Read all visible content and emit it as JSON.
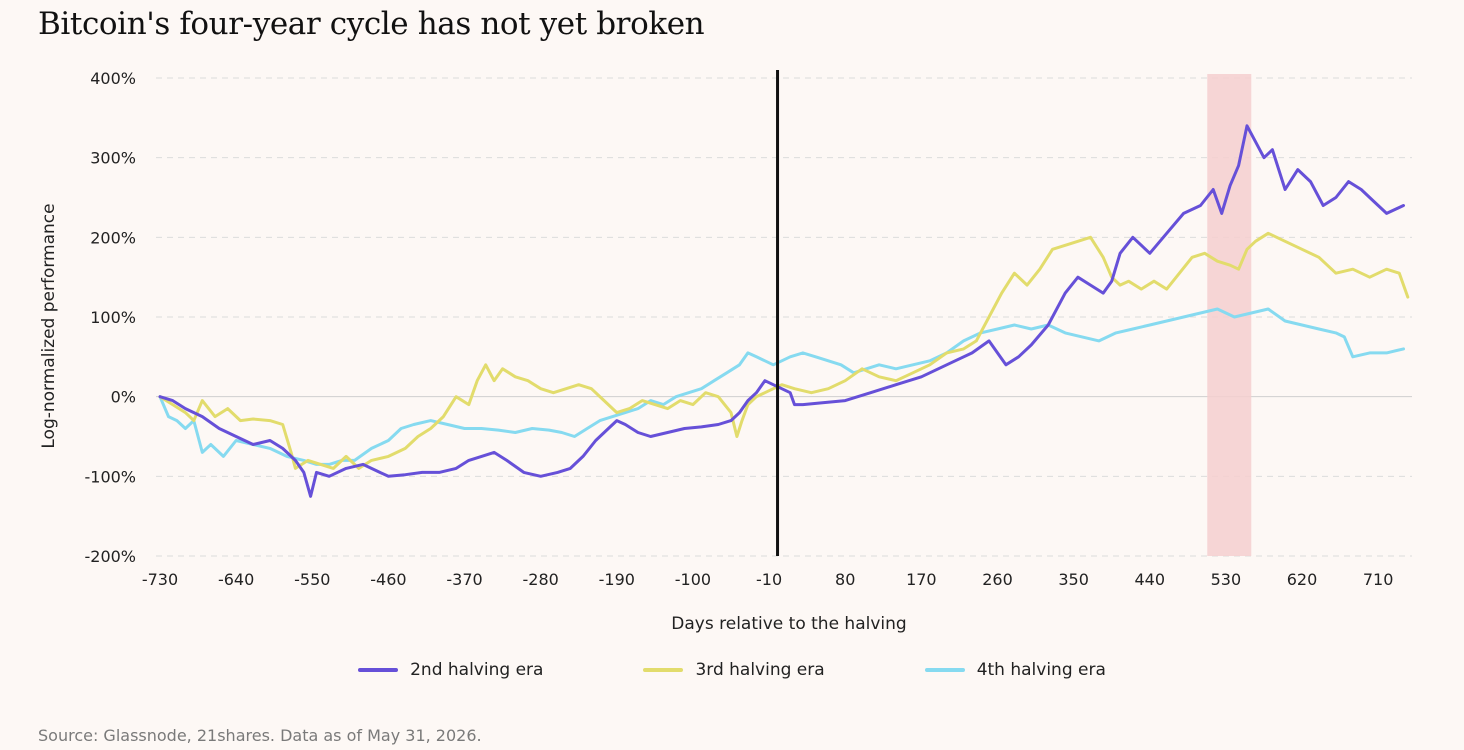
{
  "chart_data": {
    "type": "line",
    "title": "Bitcoin's four-year cycle has not yet broken",
    "xlabel": "Days relative to the halving",
    "ylabel": "Log-normalized performance",
    "xlim": [
      -730,
      750
    ],
    "ylim": [
      -200,
      400
    ],
    "xticks": [
      -730,
      -640,
      -550,
      -460,
      -370,
      -280,
      -190,
      -100,
      -10,
      80,
      170,
      260,
      350,
      440,
      530,
      620,
      710
    ],
    "xtick_labels": [
      "-730",
      "-640",
      "-550",
      "-460",
      "-370",
      "-280",
      "-190",
      "-100",
      "-10",
      "80",
      "170",
      "260",
      "350",
      "440",
      "530",
      "620",
      "710"
    ],
    "yticks": [
      -200,
      -100,
      0,
      100,
      200,
      300,
      400
    ],
    "ytick_labels": [
      "-200%",
      "-100%",
      "0%",
      "100%",
      "200%",
      "300%",
      "400%"
    ],
    "grid": "horizontal-dashed",
    "legend_position": "bottom-center",
    "halving_marker_x": 0,
    "highlight_band": [
      508,
      560
    ],
    "series": [
      {
        "name": "2nd halving era",
        "color": "#6650d8",
        "x": [
          -730,
          -715,
          -700,
          -680,
          -660,
          -640,
          -620,
          -600,
          -585,
          -570,
          -560,
          -552,
          -545,
          -530,
          -510,
          -490,
          -470,
          -460,
          -440,
          -420,
          -400,
          -380,
          -365,
          -350,
          -335,
          -320,
          -300,
          -280,
          -260,
          -245,
          -230,
          -215,
          -200,
          -190,
          -180,
          -165,
          -150,
          -130,
          -110,
          -90,
          -70,
          -55,
          -45,
          -35,
          -25,
          -15,
          -5,
          5,
          15,
          20,
          30,
          50,
          80,
          110,
          140,
          170,
          190,
          210,
          230,
          250,
          270,
          285,
          300,
          320,
          340,
          355,
          370,
          385,
          395,
          405,
          420,
          440,
          460,
          480,
          500,
          515,
          525,
          535,
          545,
          555,
          565,
          575,
          585,
          600,
          615,
          630,
          645,
          660,
          675,
          690,
          705,
          720,
          740
        ],
        "y": [
          0,
          -5,
          -15,
          -25,
          -40,
          -50,
          -60,
          -55,
          -65,
          -80,
          -95,
          -125,
          -95,
          -100,
          -90,
          -85,
          -95,
          -100,
          -98,
          -95,
          -95,
          -90,
          -80,
          -75,
          -70,
          -80,
          -95,
          -100,
          -95,
          -90,
          -75,
          -55,
          -40,
          -30,
          -35,
          -45,
          -50,
          -45,
          -40,
          -38,
          -35,
          -30,
          -20,
          -5,
          5,
          20,
          15,
          10,
          5,
          -10,
          -10,
          -8,
          -5,
          5,
          15,
          25,
          35,
          45,
          55,
          70,
          40,
          50,
          65,
          90,
          130,
          150,
          140,
          130,
          145,
          180,
          200,
          180,
          205,
          230,
          240,
          260,
          230,
          265,
          290,
          340,
          320,
          300,
          310,
          260,
          285,
          270,
          240,
          250,
          270,
          260,
          245,
          230,
          240
        ]
      },
      {
        "name": "3rd halving era",
        "color": "#e2dc6c",
        "x": [
          -730,
          -715,
          -700,
          -690,
          -680,
          -665,
          -650,
          -635,
          -620,
          -600,
          -585,
          -575,
          -570,
          -555,
          -540,
          -525,
          -510,
          -495,
          -480,
          -460,
          -440,
          -425,
          -410,
          -395,
          -380,
          -365,
          -355,
          -345,
          -335,
          -325,
          -310,
          -295,
          -280,
          -265,
          -250,
          -235,
          -220,
          -205,
          -190,
          -175,
          -160,
          -145,
          -130,
          -115,
          -100,
          -85,
          -70,
          -55,
          -48,
          -42,
          -35,
          -25,
          -15,
          -5,
          5,
          20,
          40,
          60,
          80,
          100,
          120,
          140,
          160,
          180,
          200,
          220,
          235,
          250,
          265,
          280,
          295,
          310,
          325,
          340,
          355,
          370,
          385,
          395,
          405,
          415,
          430,
          445,
          460,
          475,
          490,
          505,
          520,
          535,
          545,
          555,
          565,
          580,
          600,
          620,
          640,
          660,
          680,
          700,
          720,
          735,
          745
        ],
        "y": [
          0,
          -10,
          -20,
          -30,
          -5,
          -25,
          -15,
          -30,
          -28,
          -30,
          -35,
          -70,
          -90,
          -80,
          -85,
          -90,
          -75,
          -90,
          -80,
          -75,
          -65,
          -50,
          -40,
          -25,
          0,
          -10,
          20,
          40,
          20,
          35,
          25,
          20,
          10,
          5,
          10,
          15,
          10,
          -5,
          -20,
          -15,
          -5,
          -10,
          -15,
          -5,
          -10,
          5,
          0,
          -20,
          -50,
          -30,
          -10,
          0,
          5,
          10,
          15,
          10,
          5,
          10,
          20,
          35,
          25,
          20,
          30,
          40,
          55,
          60,
          70,
          100,
          130,
          155,
          140,
          160,
          185,
          190,
          195,
          200,
          175,
          150,
          140,
          145,
          135,
          145,
          135,
          155,
          175,
          180,
          170,
          165,
          160,
          185,
          195,
          205,
          195,
          185,
          175,
          155,
          160,
          150,
          160,
          155,
          125
        ]
      },
      {
        "name": "4th halving era",
        "color": "#86daf0",
        "x": [
          -730,
          -720,
          -710,
          -700,
          -690,
          -680,
          -670,
          -655,
          -640,
          -620,
          -600,
          -580,
          -560,
          -545,
          -530,
          -515,
          -500,
          -480,
          -460,
          -445,
          -430,
          -410,
          -390,
          -370,
          -350,
          -330,
          -310,
          -290,
          -270,
          -255,
          -240,
          -225,
          -210,
          -195,
          -180,
          -165,
          -150,
          -135,
          -120,
          -105,
          -90,
          -75,
          -60,
          -45,
          -35,
          -25,
          -15,
          -5,
          5,
          15,
          30,
          45,
          60,
          75,
          90,
          105,
          120,
          140,
          160,
          180,
          200,
          220,
          240,
          260,
          280,
          300,
          320,
          340,
          360,
          380,
          400,
          420,
          440,
          460,
          480,
          500,
          520,
          540,
          560,
          580,
          600,
          620,
          640,
          660,
          670,
          680,
          700,
          720,
          740
        ],
        "y": [
          0,
          -25,
          -30,
          -40,
          -30,
          -70,
          -60,
          -75,
          -55,
          -60,
          -65,
          -75,
          -80,
          -85,
          -85,
          -80,
          -80,
          -65,
          -55,
          -40,
          -35,
          -30,
          -35,
          -40,
          -40,
          -42,
          -45,
          -40,
          -42,
          -45,
          -50,
          -40,
          -30,
          -25,
          -20,
          -15,
          -5,
          -10,
          0,
          5,
          10,
          20,
          30,
          40,
          55,
          50,
          45,
          40,
          45,
          50,
          55,
          50,
          45,
          40,
          30,
          35,
          40,
          35,
          40,
          45,
          55,
          70,
          80,
          85,
          90,
          85,
          90,
          80,
          75,
          70,
          80,
          85,
          90,
          95,
          100,
          105,
          110,
          100,
          105,
          110,
          95,
          90,
          85,
          80,
          75,
          50,
          55,
          55,
          60
        ]
      }
    ]
  },
  "source_text": "Source: Glassnode, 21shares. Data as of May 31, 2026."
}
